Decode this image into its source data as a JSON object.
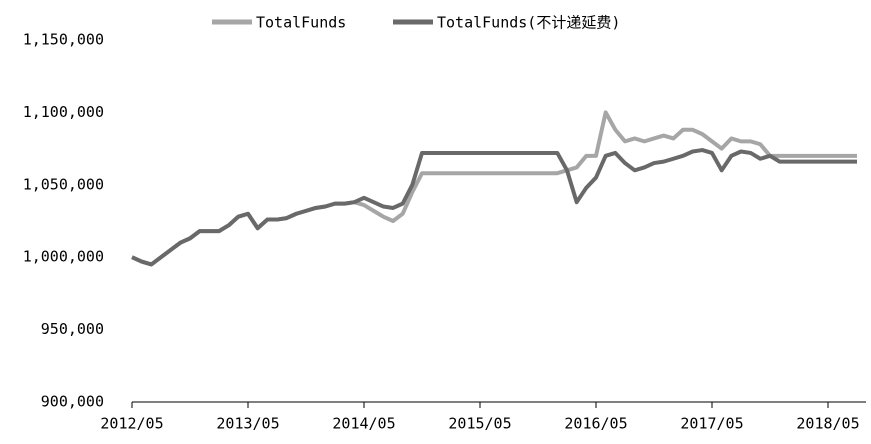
{
  "chart_data": {
    "type": "line",
    "x": [
      "2012/05",
      null,
      null,
      null,
      null,
      null,
      null,
      null,
      null,
      null,
      null,
      null,
      "2013/05",
      null,
      null,
      null,
      null,
      null,
      null,
      null,
      null,
      null,
      null,
      null,
      "2014/05",
      null,
      null,
      null,
      null,
      null,
      null,
      null,
      null,
      null,
      null,
      null,
      "2015/05",
      null,
      null,
      null,
      null,
      null,
      null,
      null,
      null,
      null,
      null,
      null,
      "2016/05",
      null,
      null,
      null,
      null,
      null,
      null,
      null,
      null,
      null,
      null,
      null,
      "2017/05",
      null,
      null,
      null,
      null,
      null,
      null,
      null,
      null,
      null,
      null,
      null,
      "2018/05",
      null,
      null,
      null
    ],
    "series": [
      {
        "name": "TotalFunds",
        "color": "#a6a6a6",
        "values": [
          1000000,
          997000,
          995000,
          1000000,
          1005000,
          1010000,
          1013000,
          1018000,
          1018000,
          1018000,
          1022000,
          1028000,
          1030000,
          1020000,
          1026000,
          1026000,
          1027000,
          1030000,
          1032000,
          1034000,
          1035000,
          1037000,
          1037000,
          1038000,
          1036000,
          1032000,
          1028000,
          1025000,
          1030000,
          1045000,
          1058000,
          1058000,
          1058000,
          1058000,
          1058000,
          1058000,
          1058000,
          1058000,
          1058000,
          1058000,
          1058000,
          1058000,
          1058000,
          1058000,
          1058000,
          1060000,
          1062000,
          1070000,
          1070000,
          1100000,
          1088000,
          1080000,
          1082000,
          1080000,
          1082000,
          1084000,
          1082000,
          1088000,
          1088000,
          1085000,
          1080000,
          1075000,
          1082000,
          1080000,
          1080000,
          1078000,
          1070000,
          1070000,
          1070000,
          1070000,
          1070000,
          1070000,
          1070000,
          1070000,
          1070000,
          1070000
        ]
      },
      {
        "name": "TotalFunds(不计递延费)",
        "color": "#696969",
        "values": [
          1000000,
          997000,
          995000,
          1000000,
          1005000,
          1010000,
          1013000,
          1018000,
          1018000,
          1018000,
          1022000,
          1028000,
          1030000,
          1020000,
          1026000,
          1026000,
          1027000,
          1030000,
          1032000,
          1034000,
          1035000,
          1037000,
          1037000,
          1038000,
          1041000,
          1038000,
          1035000,
          1034000,
          1037000,
          1050000,
          1072000,
          1072000,
          1072000,
          1072000,
          1072000,
          1072000,
          1072000,
          1072000,
          1072000,
          1072000,
          1072000,
          1072000,
          1072000,
          1072000,
          1072000,
          1060000,
          1038000,
          1048000,
          1055000,
          1070000,
          1072000,
          1065000,
          1060000,
          1062000,
          1065000,
          1066000,
          1068000,
          1070000,
          1073000,
          1074000,
          1072000,
          1060000,
          1070000,
          1073000,
          1072000,
          1068000,
          1070000,
          1066000,
          1066000,
          1066000,
          1066000,
          1066000,
          1066000,
          1066000,
          1066000,
          1066000
        ]
      }
    ],
    "ylim": [
      900000,
      1150000
    ],
    "yticks": [
      {
        "value": 900000,
        "label": "900,000"
      },
      {
        "value": 950000,
        "label": "950,000"
      },
      {
        "value": 1000000,
        "label": "1,000,000"
      },
      {
        "value": 1050000,
        "label": "1,050,000"
      },
      {
        "value": 1100000,
        "label": "1,100,000"
      },
      {
        "value": 1150000,
        "label": "1,150,000"
      }
    ],
    "grid": false,
    "legend": "top"
  }
}
